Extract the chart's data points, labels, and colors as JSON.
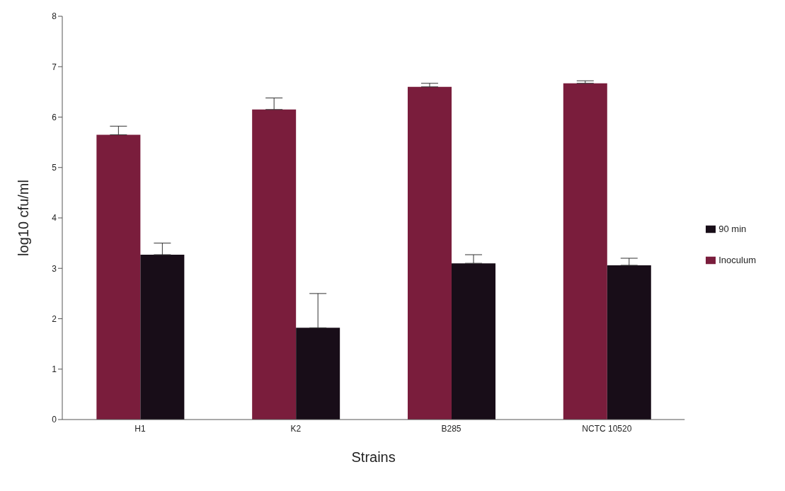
{
  "chart_data": {
    "type": "bar",
    "xlabel": "Strains",
    "ylabel": "log10 cfu/ml",
    "categories": [
      "H1",
      "K2",
      "B285",
      "NCTC 10520"
    ],
    "series": [
      {
        "name": "Inoculum",
        "color": "#7a1d3c",
        "values": [
          5.65,
          6.15,
          6.6,
          6.67
        ],
        "errors": [
          [
            5.65,
            5.82
          ],
          [
            6.15,
            6.38
          ],
          [
            6.6,
            6.67
          ],
          [
            6.67,
            6.72
          ]
        ]
      },
      {
        "name": "90 min",
        "color": "#180d18",
        "values": [
          3.27,
          1.82,
          3.1,
          3.06
        ],
        "errors": [
          [
            3.27,
            3.5
          ],
          [
            1.82,
            2.5
          ],
          [
            3.1,
            3.27
          ],
          [
            3.06,
            3.2
          ]
        ]
      }
    ],
    "ylim": [
      0,
      8
    ],
    "yticks": [
      0,
      1,
      2,
      3,
      4,
      5,
      6,
      7,
      8
    ],
    "grid": false,
    "legend": "right"
  }
}
